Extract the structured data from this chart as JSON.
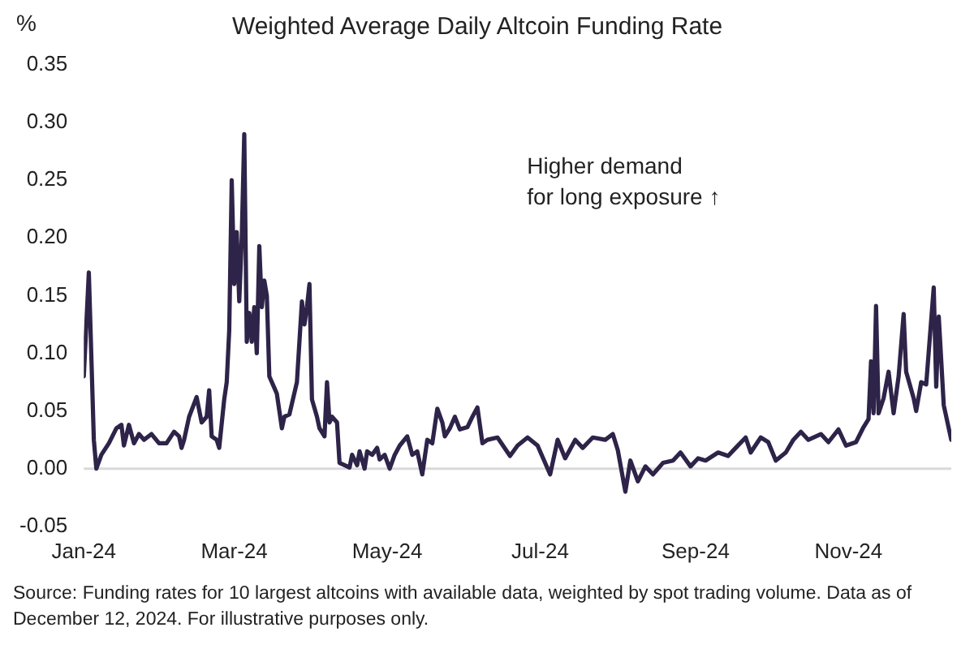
{
  "chart_data": {
    "type": "line",
    "title": "Weighted Average Daily Altcoin Funding Rate",
    "ylabel": "%",
    "x": [
      "2024-01-01",
      "2024-01-03",
      "2024-01-05",
      "2024-01-06",
      "2024-01-08",
      "2024-01-11",
      "2024-01-14",
      "2024-01-16",
      "2024-01-17",
      "2024-01-19",
      "2024-01-21",
      "2024-01-23",
      "2024-01-25",
      "2024-01-28",
      "2024-01-31",
      "2024-02-03",
      "2024-02-06",
      "2024-02-08",
      "2024-02-09",
      "2024-02-10",
      "2024-02-12",
      "2024-02-15",
      "2024-02-17",
      "2024-02-19",
      "2024-02-20",
      "2024-02-21",
      "2024-02-23",
      "2024-02-24",
      "2024-02-26",
      "2024-02-27",
      "2024-02-28",
      "2024-02-29",
      "2024-03-01",
      "2024-03-02",
      "2024-03-03",
      "2024-03-04",
      "2024-03-05",
      "2024-03-06",
      "2024-03-07",
      "2024-03-08",
      "2024-03-09",
      "2024-03-10",
      "2024-03-11",
      "2024-03-12",
      "2024-03-13",
      "2024-03-14",
      "2024-03-15",
      "2024-03-17",
      "2024-03-18",
      "2024-03-20",
      "2024-03-21",
      "2024-03-23",
      "2024-03-26",
      "2024-03-28",
      "2024-03-29",
      "2024-03-30",
      "2024-03-31",
      "2024-04-01",
      "2024-04-03",
      "2024-04-04",
      "2024-04-06",
      "2024-04-07",
      "2024-04-08",
      "2024-04-09",
      "2024-04-11",
      "2024-04-12",
      "2024-04-14",
      "2024-04-16",
      "2024-04-17",
      "2024-04-19",
      "2024-04-20",
      "2024-04-22",
      "2024-04-23",
      "2024-04-25",
      "2024-04-27",
      "2024-04-28",
      "2024-04-30",
      "2024-05-02",
      "2024-05-04",
      "2024-05-06",
      "2024-05-09",
      "2024-05-11",
      "2024-05-13",
      "2024-05-15",
      "2024-05-17",
      "2024-05-19",
      "2024-05-21",
      "2024-05-23",
      "2024-05-24",
      "2024-05-26",
      "2024-05-28",
      "2024-05-30",
      "2024-06-02",
      "2024-06-04",
      "2024-06-06",
      "2024-06-08",
      "2024-06-10",
      "2024-06-14",
      "2024-06-19",
      "2024-06-22",
      "2024-06-26",
      "2024-06-30",
      "2024-07-05",
      "2024-07-08",
      "2024-07-11",
      "2024-07-15",
      "2024-07-18",
      "2024-07-22",
      "2024-07-27",
      "2024-07-30",
      "2024-08-01",
      "2024-08-04",
      "2024-08-06",
      "2024-08-09",
      "2024-08-12",
      "2024-08-15",
      "2024-08-19",
      "2024-08-23",
      "2024-08-26",
      "2024-08-30",
      "2024-09-02",
      "2024-09-05",
      "2024-09-10",
      "2024-09-14",
      "2024-09-17",
      "2024-09-21",
      "2024-09-23",
      "2024-09-27",
      "2024-09-30",
      "2024-10-03",
      "2024-10-07",
      "2024-10-10",
      "2024-10-13",
      "2024-10-16",
      "2024-10-21",
      "2024-10-24",
      "2024-10-28",
      "2024-10-31",
      "2024-11-04",
      "2024-11-07",
      "2024-11-09",
      "2024-11-10",
      "2024-11-11",
      "2024-11-12",
      "2024-11-13",
      "2024-11-15",
      "2024-11-17",
      "2024-11-19",
      "2024-11-21",
      "2024-11-23",
      "2024-11-24",
      "2024-11-27",
      "2024-11-28",
      "2024-11-30",
      "2024-12-02",
      "2024-12-05",
      "2024-12-06",
      "2024-12-07",
      "2024-12-09",
      "2024-12-12"
    ],
    "series": [
      {
        "color": "#2e2348",
        "values": [
          0.08,
          0.17,
          0.025,
          0.0,
          0.012,
          0.022,
          0.035,
          0.038,
          0.02,
          0.038,
          0.022,
          0.03,
          0.025,
          0.03,
          0.022,
          0.022,
          0.032,
          0.028,
          0.018,
          0.025,
          0.045,
          0.062,
          0.04,
          0.045,
          0.068,
          0.028,
          0.025,
          0.018,
          0.06,
          0.075,
          0.12,
          0.25,
          0.16,
          0.205,
          0.145,
          0.2,
          0.29,
          0.11,
          0.135,
          0.11,
          0.14,
          0.1,
          0.193,
          0.14,
          0.163,
          0.15,
          0.08,
          0.07,
          0.065,
          0.035,
          0.045,
          0.047,
          0.075,
          0.145,
          0.125,
          0.14,
          0.16,
          0.06,
          0.045,
          0.035,
          0.028,
          0.075,
          0.04,
          0.045,
          0.04,
          0.005,
          0.003,
          0.001,
          0.012,
          0.003,
          0.015,
          0.0,
          0.015,
          0.012,
          0.018,
          0.008,
          0.012,
          0.0,
          0.012,
          0.02,
          0.028,
          0.012,
          0.015,
          -0.005,
          0.025,
          0.022,
          0.052,
          0.04,
          0.028,
          0.035,
          0.045,
          0.034,
          0.036,
          0.045,
          0.053,
          0.022,
          0.025,
          0.027,
          0.011,
          0.02,
          0.027,
          0.02,
          -0.005,
          0.025,
          0.009,
          0.025,
          0.018,
          0.027,
          0.025,
          0.03,
          0.016,
          -0.02,
          0.007,
          -0.011,
          0.002,
          -0.005,
          0.005,
          0.007,
          0.014,
          0.002,
          0.009,
          0.007,
          0.014,
          0.011,
          0.018,
          0.027,
          0.014,
          0.027,
          0.023,
          0.007,
          0.014,
          0.025,
          0.032,
          0.025,
          0.03,
          0.023,
          0.034,
          0.02,
          0.023,
          0.036,
          0.043,
          0.093,
          0.048,
          0.141,
          0.048,
          0.061,
          0.084,
          0.048,
          0.08,
          0.134,
          0.084,
          0.061,
          0.05,
          0.075,
          0.073,
          0.157,
          0.071,
          0.132,
          0.055,
          0.025
        ]
      }
    ],
    "xlim": [
      "2024-01-01",
      "2024-12-12"
    ],
    "xticks": [
      {
        "value": "2024-01-01",
        "label": "Jan-24"
      },
      {
        "value": "2024-03-01",
        "label": "Mar-24"
      },
      {
        "value": "2024-05-01",
        "label": "May-24"
      },
      {
        "value": "2024-07-01",
        "label": "Jul-24"
      },
      {
        "value": "2024-09-01",
        "label": "Sep-24"
      },
      {
        "value": "2024-11-01",
        "label": "Nov-24"
      }
    ],
    "ylim": [
      -0.05,
      0.35
    ],
    "yticks": [
      -0.05,
      {
        "value": 0,
        "label": "0.00"
      },
      0.05,
      {
        "value": 0.1,
        "label": "0.10"
      },
      0.15,
      {
        "value": 0.2,
        "label": "0.20"
      },
      0.25,
      {
        "value": 0.3,
        "label": "0.30"
      },
      0.35
    ],
    "ref_lines": [
      {
        "axis": "y",
        "value": 0,
        "color": "#d9d9d9"
      }
    ],
    "grid": false,
    "legend": false,
    "marker": "none",
    "line_style": "solid",
    "annotations": [
      "Higher demand\nfor long exposure ↑",
      "Source: Funding rates for 10 largest altcoins with available data, weighted by spot trading volume. Data as of December 12, 2024. For illustrative purposes only."
    ]
  }
}
